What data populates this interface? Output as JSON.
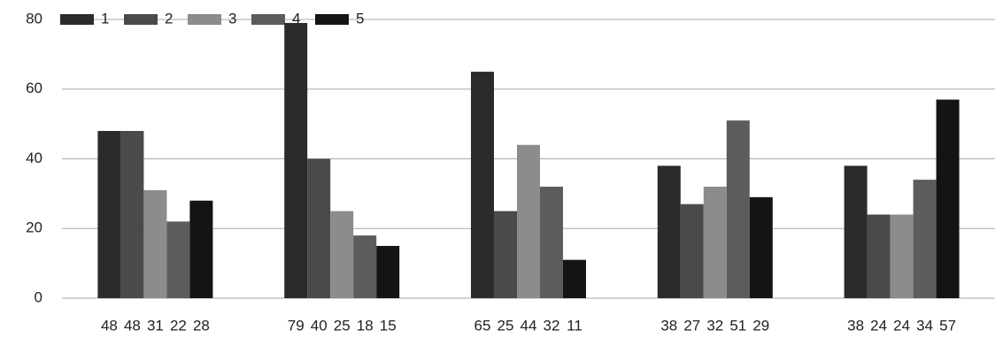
{
  "chart_data": {
    "type": "bar",
    "categories": [
      null,
      null,
      null,
      null,
      null
    ],
    "series": [
      {
        "name": "1",
        "color": "#2b2b2b",
        "values": [
          48,
          79,
          65,
          38,
          38
        ]
      },
      {
        "name": "2",
        "color": "#4a4a4a",
        "values": [
          48,
          40,
          25,
          27,
          24
        ]
      },
      {
        "name": "3",
        "color": "#8c8c8c",
        "values": [
          31,
          25,
          44,
          32,
          24
        ]
      },
      {
        "name": "4",
        "color": "#5c5c5c",
        "values": [
          22,
          18,
          32,
          51,
          34
        ]
      },
      {
        "name": "5",
        "color": "#141414",
        "values": [
          28,
          15,
          11,
          29,
          57
        ]
      }
    ],
    "ylim": [
      0,
      80
    ],
    "yticks": [
      0,
      20,
      40,
      60,
      80
    ],
    "grid": true,
    "legend": "top"
  }
}
